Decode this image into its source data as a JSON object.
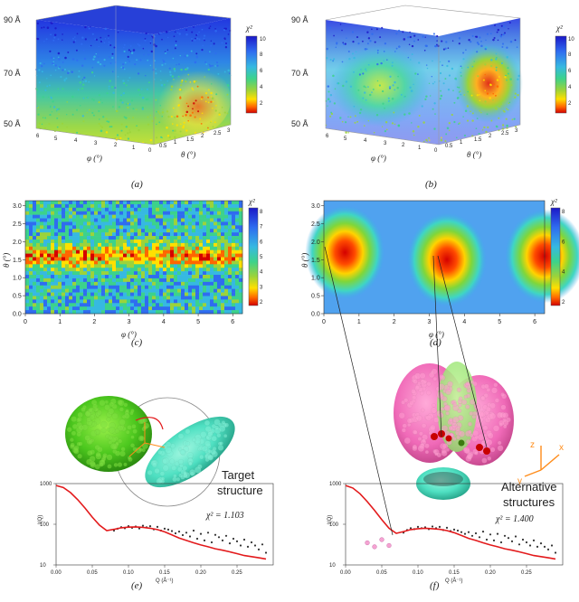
{
  "colors": {
    "scale": [
      "#d40000",
      "#ff6600",
      "#ffe000",
      "#9bd33b",
      "#3cd28c",
      "#36b9e1",
      "#2f6cf0",
      "#1b18c8"
    ],
    "green_molecule": "#5ed829",
    "cyan_molecule": "#4fe0c2",
    "pink_molecule": "#f06ab8",
    "red_fit": "#e31a1c",
    "data_points": "#333333",
    "orange_axes": "#ff8c1a"
  },
  "panel_a": {
    "label": "(a)",
    "z_ticks": [
      "90 Å",
      "70 Å",
      "50 Å"
    ],
    "phi_ticks": [
      "6",
      "5",
      "4",
      "3",
      "2",
      "1",
      "0"
    ],
    "theta_ticks": [
      "0.5",
      "1",
      "1.5",
      "2",
      "2.5",
      "3"
    ],
    "phi_title": "φ (°)",
    "theta_title": "θ (°)",
    "colorbar_title": "χ²",
    "colorbar_ticks": [
      "10",
      "8",
      "6",
      "4",
      "2"
    ]
  },
  "panel_b": {
    "label": "(b)",
    "z_ticks": [
      "90 Å",
      "70 Å",
      "50 Å"
    ],
    "phi_ticks": [
      "6",
      "5",
      "4",
      "3",
      "2",
      "1",
      "0"
    ],
    "theta_ticks": [
      "0.5",
      "1",
      "1.5",
      "2",
      "2.5",
      "3"
    ],
    "phi_title": "φ (°)",
    "theta_title": "θ (°)",
    "colorbar_title": "χ²",
    "colorbar_ticks": [
      "10",
      "8",
      "6",
      "4",
      "2"
    ]
  },
  "chart_data": [
    {
      "id": "panel_c",
      "type": "heatmap",
      "label": "(c)",
      "xlabel": "φ (°)",
      "ylabel": "θ (°)",
      "xlim": [
        0,
        6.28
      ],
      "ylim": [
        0,
        3.14
      ],
      "x_ticks": [
        "0",
        "1",
        "2",
        "3",
        "4",
        "5",
        "6"
      ],
      "y_ticks": [
        "0.0",
        "0.5",
        "1.0",
        "1.5",
        "2.0",
        "2.5",
        "3.0"
      ],
      "colorbar_title": "χ²",
      "colorbar_ticks": [
        "8",
        "7",
        "6",
        "5",
        "4",
        "3",
        "2"
      ],
      "colorbar_range": [
        1.5,
        8.5
      ],
      "description_band": "low χ² near θ ≈ 1.6"
    },
    {
      "id": "panel_d",
      "type": "heatmap",
      "label": "(d)",
      "xlabel": "φ (°)",
      "ylabel": "θ (°)",
      "xlim": [
        0,
        6.28
      ],
      "ylim": [
        0,
        3.14
      ],
      "x_ticks": [
        "0",
        "1",
        "2",
        "3",
        "4",
        "5",
        "6"
      ],
      "y_ticks": [
        "0.0",
        "0.5",
        "1.0",
        "1.5",
        "2.0",
        "2.5",
        "3.0"
      ],
      "colorbar_title": "χ²",
      "colorbar_ticks": [
        "8",
        "6",
        "4",
        "2"
      ],
      "colorbar_range": [
        1,
        9
      ],
      "minima": [
        {
          "phi": 0.6,
          "theta": 1.7
        },
        {
          "phi": 3.5,
          "theta": 1.5
        },
        {
          "phi": 6.28,
          "theta": 1.6
        }
      ]
    },
    {
      "id": "panel_e",
      "type": "line",
      "label": "(e)",
      "xlabel": "Q (Å⁻¹)",
      "ylabel": "I(Q)",
      "xlim": [
        0,
        0.3
      ],
      "ylim": [
        10,
        1000
      ],
      "yscale": "log",
      "x_ticks": [
        "0.00",
        "0.05",
        "0.10",
        "0.15",
        "0.20",
        "0.25"
      ],
      "y_ticks": [
        "1000",
        "100",
        "10"
      ],
      "annotation_chi": "χ² = 1.103",
      "annotation_text": [
        "Target",
        "structure"
      ],
      "fit_q": [
        0.0,
        0.01,
        0.02,
        0.03,
        0.04,
        0.05,
        0.06,
        0.07,
        0.08,
        0.09,
        0.1,
        0.11,
        0.12,
        0.13,
        0.14,
        0.15,
        0.16,
        0.17,
        0.18,
        0.19,
        0.2,
        0.21,
        0.22,
        0.23,
        0.24,
        0.25,
        0.26,
        0.27,
        0.28,
        0.29
      ],
      "fit_i": [
        900,
        800,
        600,
        400,
        250,
        150,
        95,
        70,
        75,
        82,
        85,
        86,
        84,
        80,
        74,
        65,
        55,
        46,
        40,
        35,
        31,
        28,
        25,
        23,
        21,
        19,
        17,
        16,
        15,
        14
      ],
      "data_q": [
        0.08,
        0.085,
        0.09,
        0.095,
        0.1,
        0.105,
        0.11,
        0.115,
        0.12,
        0.125,
        0.13,
        0.135,
        0.14,
        0.145,
        0.15,
        0.155,
        0.16,
        0.165,
        0.17,
        0.175,
        0.18,
        0.185,
        0.19,
        0.195,
        0.2,
        0.205,
        0.21,
        0.215,
        0.22,
        0.225,
        0.23,
        0.235,
        0.24,
        0.245,
        0.25,
        0.255,
        0.26,
        0.265,
        0.27,
        0.275,
        0.28,
        0.285,
        0.29
      ],
      "data_i": [
        70,
        78,
        85,
        80,
        90,
        82,
        88,
        79,
        92,
        84,
        90,
        75,
        86,
        70,
        78,
        74,
        68,
        60,
        66,
        54,
        62,
        50,
        70,
        44,
        58,
        40,
        62,
        36,
        55,
        48,
        40,
        52,
        34,
        44,
        38,
        30,
        42,
        28,
        36,
        30,
        24,
        32,
        20
      ]
    },
    {
      "id": "panel_f",
      "type": "line",
      "label": "(f)",
      "xlabel": "Q (Å⁻¹)",
      "ylabel": "I(Q)",
      "xlim": [
        0,
        0.3
      ],
      "ylim": [
        10,
        1000
      ],
      "yscale": "log",
      "x_ticks": [
        "0.00",
        "0.05",
        "0.10",
        "0.15",
        "0.20",
        "0.25"
      ],
      "y_ticks": [
        "1000",
        "100",
        "10"
      ],
      "annotation_chi": "χ² = 1.400",
      "annotation_text": [
        "Alternative",
        "structures"
      ],
      "fit_q": [
        0.0,
        0.01,
        0.02,
        0.03,
        0.04,
        0.05,
        0.06,
        0.07,
        0.08,
        0.09,
        0.1,
        0.11,
        0.12,
        0.13,
        0.14,
        0.15,
        0.16,
        0.17,
        0.18,
        0.19,
        0.2,
        0.21,
        0.22,
        0.23,
        0.24,
        0.25,
        0.26,
        0.27,
        0.28,
        0.29
      ],
      "fit_i": [
        900,
        780,
        560,
        360,
        220,
        130,
        80,
        60,
        66,
        74,
        78,
        80,
        78,
        75,
        70,
        62,
        53,
        45,
        40,
        35,
        31,
        28,
        25,
        23,
        21,
        19,
        17,
        16,
        15,
        14
      ],
      "data_q": [
        0.08,
        0.085,
        0.09,
        0.095,
        0.1,
        0.105,
        0.11,
        0.115,
        0.12,
        0.125,
        0.13,
        0.135,
        0.14,
        0.145,
        0.15,
        0.155,
        0.16,
        0.165,
        0.17,
        0.175,
        0.18,
        0.185,
        0.19,
        0.195,
        0.2,
        0.205,
        0.21,
        0.215,
        0.22,
        0.225,
        0.23,
        0.235,
        0.24,
        0.245,
        0.25,
        0.255,
        0.26,
        0.265,
        0.27,
        0.275,
        0.28,
        0.285,
        0.29
      ],
      "data_i": [
        62,
        72,
        80,
        76,
        86,
        80,
        84,
        76,
        88,
        80,
        86,
        72,
        82,
        68,
        74,
        70,
        64,
        58,
        64,
        52,
        60,
        48,
        66,
        42,
        56,
        40,
        58,
        36,
        52,
        46,
        38,
        50,
        32,
        42,
        36,
        30,
        40,
        28,
        34,
        28,
        24,
        30,
        20
      ],
      "pink_q": [
        0.03,
        0.04,
        0.05,
        0.06
      ],
      "pink_i": [
        35,
        28,
        42,
        30
      ],
      "orient_labels": [
        "z",
        "x",
        "y"
      ]
    }
  ]
}
